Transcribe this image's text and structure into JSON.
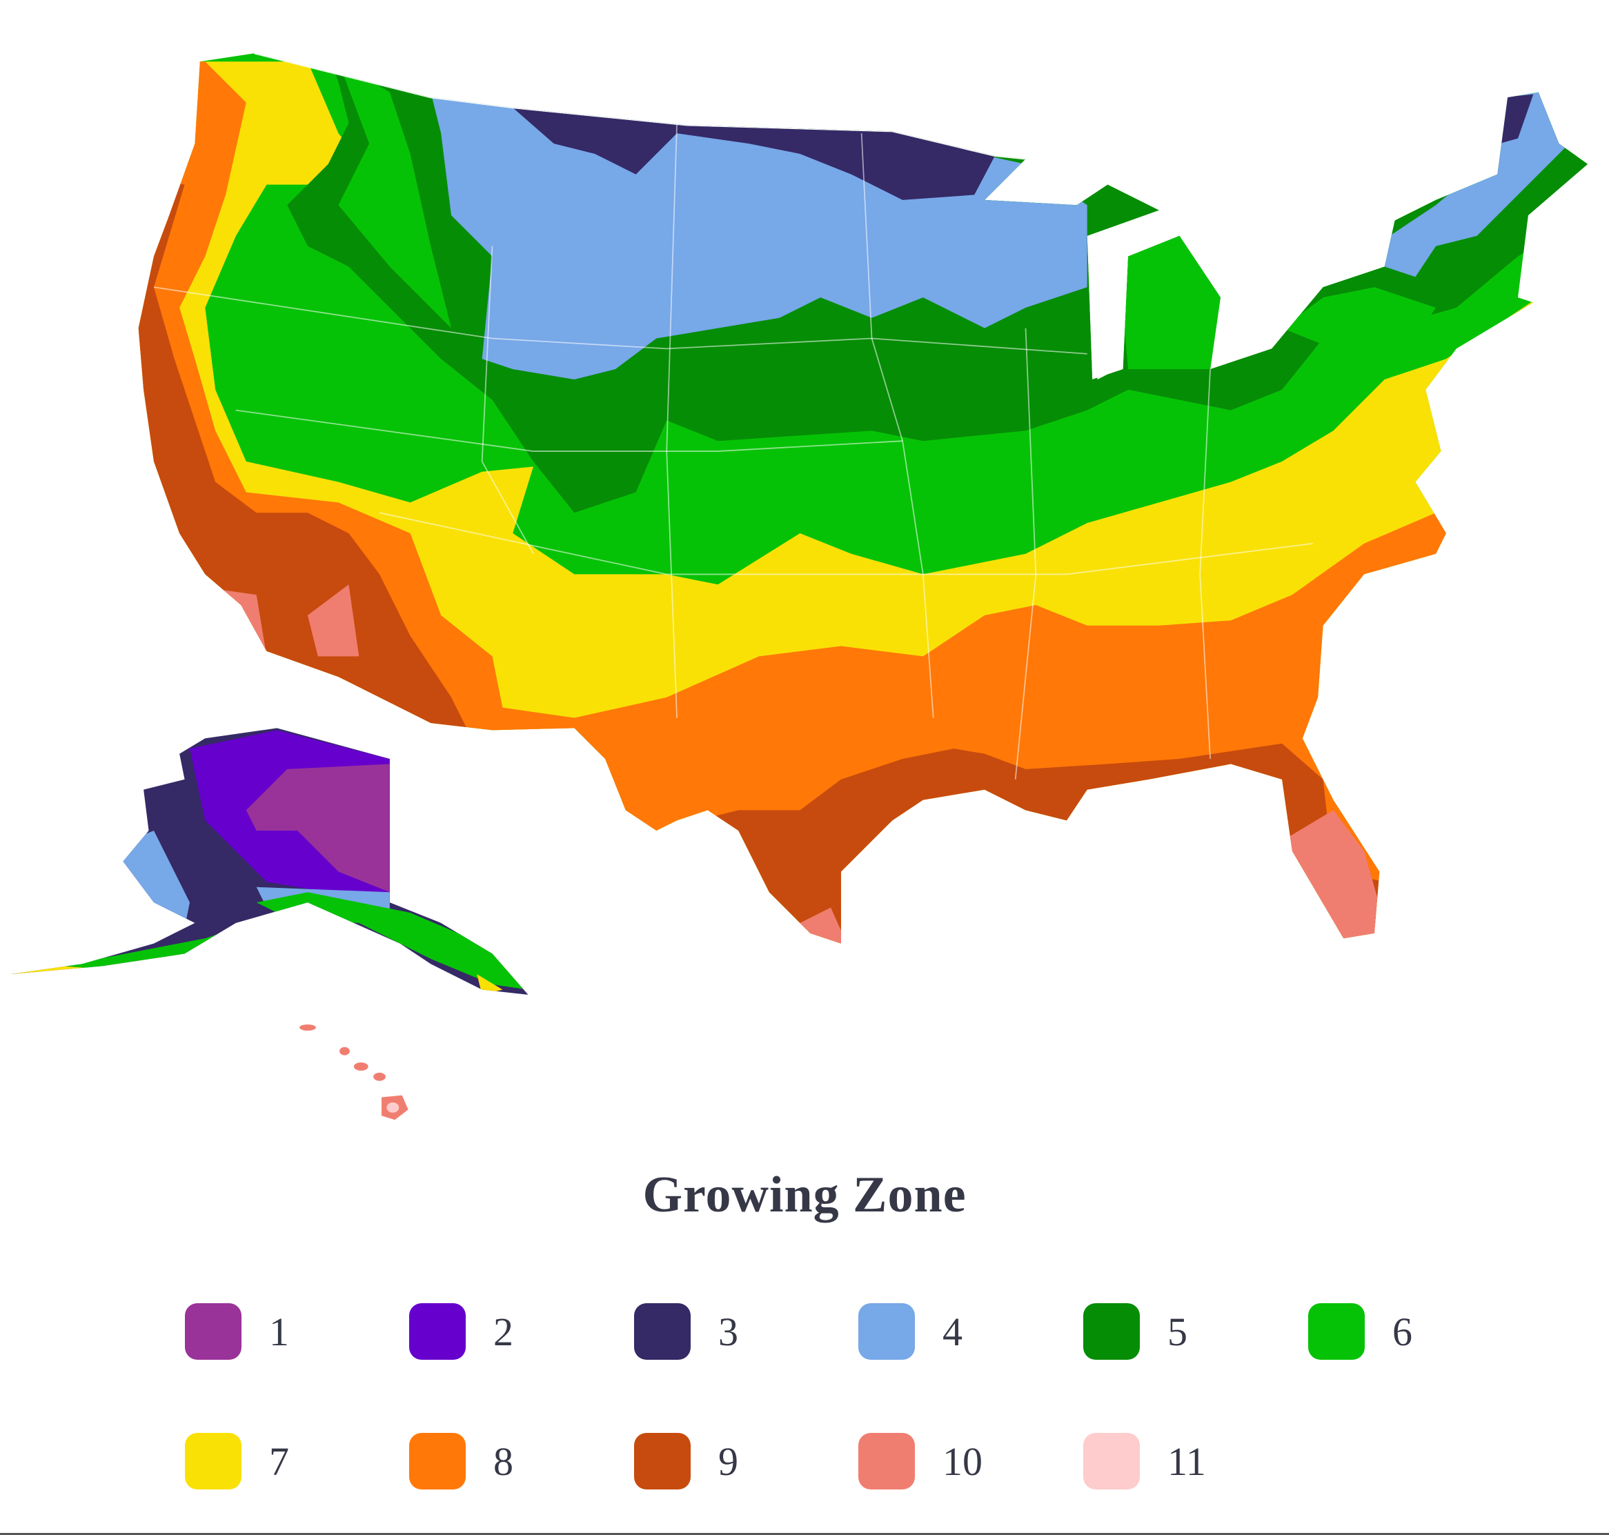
{
  "legend": {
    "title": "Growing Zone",
    "zones": [
      {
        "label": "1",
        "color": "#993399"
      },
      {
        "label": "2",
        "color": "#6600cc"
      },
      {
        "label": "3",
        "color": "#352966"
      },
      {
        "label": "4",
        "color": "#77a8e8"
      },
      {
        "label": "5",
        "color": "#068d06"
      },
      {
        "label": "6",
        "color": "#06c206"
      },
      {
        "label": "7",
        "color": "#f9e106"
      },
      {
        "label": "8",
        "color": "#ff7808"
      },
      {
        "label": "9",
        "color": "#c74b0e"
      },
      {
        "label": "10",
        "color": "#f07e70"
      },
      {
        "label": "11",
        "color": "#fecccc"
      }
    ]
  },
  "map": {
    "regions": [
      "contiguous-us",
      "alaska",
      "hawaii"
    ],
    "border_color": "#ffffff"
  }
}
